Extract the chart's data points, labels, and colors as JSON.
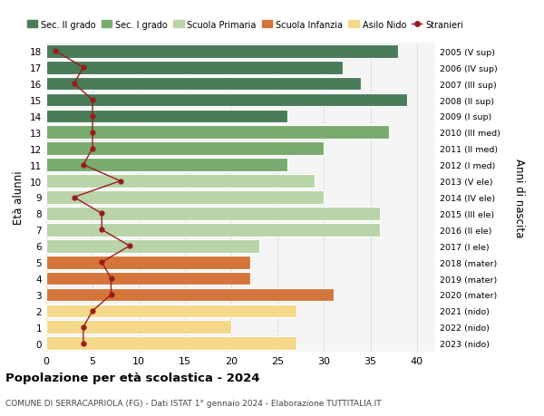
{
  "ages": [
    18,
    17,
    16,
    15,
    14,
    13,
    12,
    11,
    10,
    9,
    8,
    7,
    6,
    5,
    4,
    3,
    2,
    1,
    0
  ],
  "years": [
    "2005 (V sup)",
    "2006 (IV sup)",
    "2007 (III sup)",
    "2008 (II sup)",
    "2009 (I sup)",
    "2010 (III med)",
    "2011 (II med)",
    "2012 (I med)",
    "2013 (V ele)",
    "2014 (IV ele)",
    "2015 (III ele)",
    "2016 (II ele)",
    "2017 (I ele)",
    "2018 (mater)",
    "2019 (mater)",
    "2020 (mater)",
    "2021 (nido)",
    "2022 (nido)",
    "2023 (nido)"
  ],
  "bar_values": [
    38,
    32,
    34,
    39,
    26,
    37,
    30,
    26,
    29,
    30,
    36,
    36,
    23,
    22,
    22,
    31,
    27,
    20,
    27
  ],
  "bar_colors": [
    "#4a7c59",
    "#4a7c59",
    "#4a7c59",
    "#4a7c59",
    "#4a7c59",
    "#7aab6e",
    "#7aab6e",
    "#7aab6e",
    "#b8d4a8",
    "#b8d4a8",
    "#b8d4a8",
    "#b8d4a8",
    "#b8d4a8",
    "#d4763b",
    "#d4763b",
    "#d4763b",
    "#f5d88a",
    "#f5d88a",
    "#f5d88a"
  ],
  "stranieri_values": [
    1,
    4,
    3,
    5,
    5,
    5,
    5,
    4,
    8,
    3,
    6,
    6,
    9,
    6,
    7,
    7,
    5,
    4,
    4
  ],
  "legend_labels": [
    "Sec. II grado",
    "Sec. I grado",
    "Scuola Primaria",
    "Scuola Infanzia",
    "Asilo Nido",
    "Stranieri"
  ],
  "legend_colors": [
    "#4a7c59",
    "#7aab6e",
    "#b8d4a8",
    "#d4763b",
    "#f5d88a",
    "#9b1c1c"
  ],
  "ylabel": "Età alunni",
  "right_label": "Anni di nascita",
  "title": "Popolazione per età scolastica - 2024",
  "subtitle": "COMUNE DI SERRACAPRIOLA (FG) - Dati ISTAT 1° gennaio 2024 - Elaborazione TUTTITALIA.IT",
  "xlim": [
    0,
    42
  ],
  "xticks": [
    0,
    5,
    10,
    15,
    20,
    25,
    30,
    35,
    40
  ],
  "bg_color": "#ffffff",
  "plot_bg_color": "#f5f5f5",
  "grid_color": "#cccccc",
  "stranieri_color": "#9b1c1c"
}
